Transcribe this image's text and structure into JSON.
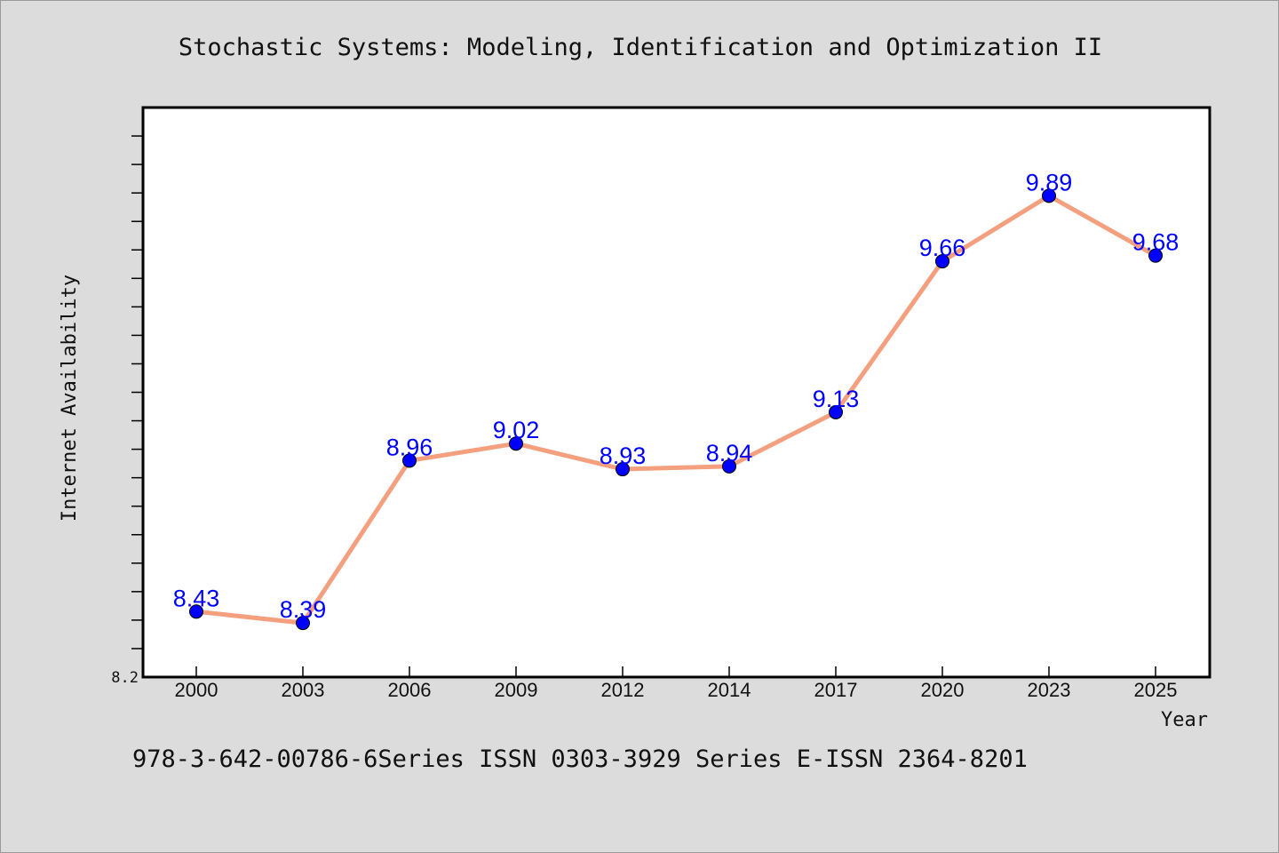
{
  "chart_data": {
    "type": "line",
    "title": "Stochastic Systems: Modeling, Identification and Optimization II",
    "xlabel": "Year",
    "ylabel": "Internet Availability",
    "categories": [
      "2000",
      "2003",
      "2006",
      "2009",
      "2012",
      "2014",
      "2017",
      "2020",
      "2023",
      "2025"
    ],
    "series": [
      {
        "values": [
          8.43,
          8.39,
          8.96,
          9.02,
          8.93,
          8.94,
          9.13,
          9.66,
          9.89,
          9.68
        ]
      }
    ],
    "y_tick_labels": [
      "8.2"
    ],
    "ylim": [
      8.2,
      10.2
    ],
    "grid": false,
    "line_color": "#f4a07f",
    "marker_color": "#0000ff",
    "label_color": "#0000ff",
    "plot_background": "#ffffff",
    "figure_background": "#dcdcdc"
  },
  "footer": {
    "text": "978-3-642-00786-6Series ISSN 0303-3929 Series E-ISSN 2364-8201"
  }
}
